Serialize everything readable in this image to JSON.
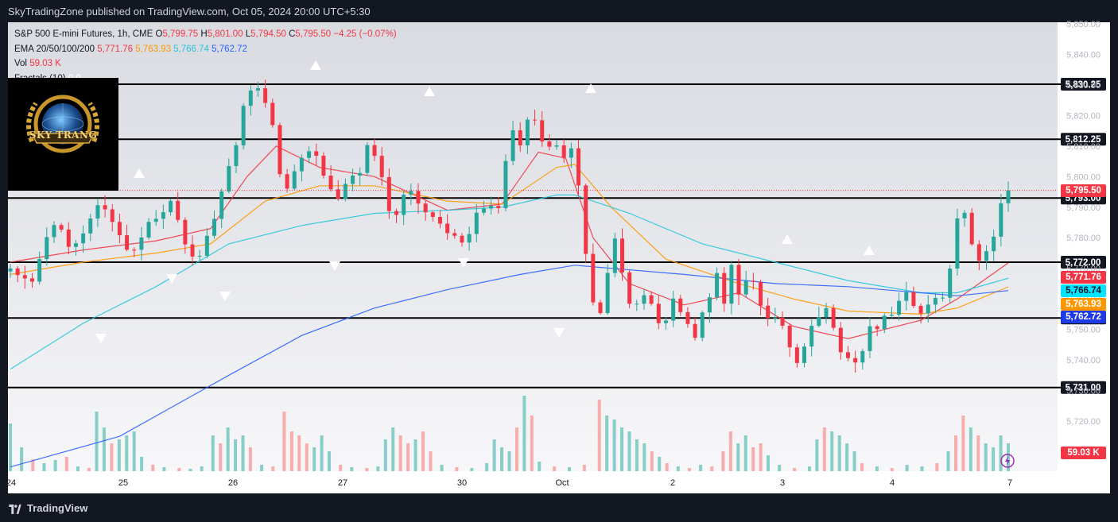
{
  "header": {
    "publisher_line": "SkyTradingZone published on TradingView.com, Oct 05, 2024 20:00 UTC+5:30"
  },
  "legend": {
    "symbol": "S&P 500 E-mini Futures, 1h, CME",
    "ohlc": {
      "o_label": "O",
      "o": "5,799.75",
      "h_label": "H",
      "h": "5,801.00",
      "l_label": "L",
      "l": "5,794.50",
      "c_label": "C",
      "c": "5,795.50",
      "change": "−4.25 (−0.07%)"
    },
    "ema_label": "EMA 20/50/100/200",
    "ema20": "5,771.76",
    "ema50": "5,763.93",
    "ema100": "5,766.74",
    "ema200": "5,762.72",
    "vol_label": "Vol",
    "vol_value": "59.03 K",
    "fractals_label": "Fractals (10)",
    "fractals_values": "0  0"
  },
  "brand": {
    "name": "SKY TRANG"
  },
  "price_tags": {
    "current": "5,795.50",
    "ema20": "5,771.76",
    "ema100": "5,766.74",
    "ema50": "5,763.93",
    "ema200": "5,762.72",
    "volume": "59.03 K"
  },
  "footer": {
    "brand": "TradingView"
  },
  "colors": {
    "bull": "#26a69a",
    "bear": "#f23645",
    "ema20": "#f23645",
    "ema50": "#ff9800",
    "ema100": "#26c6da",
    "ema200": "#2962ff"
  },
  "chart_data": {
    "type": "candlestick",
    "symbol": "S&P 500 E-mini Futures",
    "timeframe": "1h",
    "y_ticks": [
      "5,850.00",
      "5,840.00",
      "5,830.00",
      "5,820.00",
      "5,810.00",
      "5,800.00",
      "5,790.00",
      "5,780.00",
      "5,770.00",
      "5,760.00",
      "5,750.00",
      "5,740.00",
      "5,730.00",
      "5,720.00"
    ],
    "y_tick_values": [
      5850,
      5840,
      5830,
      5820,
      5810,
      5800,
      5790,
      5780,
      5770,
      5760,
      5750,
      5740,
      5730,
      5720
    ],
    "x_ticks": [
      "24",
      "25",
      "26",
      "27",
      "30",
      "Oct",
      "2",
      "3",
      "4",
      "7"
    ],
    "horizontal_levels": [
      {
        "value": 5830.25,
        "label": "5,830.25"
      },
      {
        "value": 5812.25,
        "label": "5,812.25"
      },
      {
        "value": 5793.0,
        "label": "5,793.00"
      },
      {
        "value": 5772.0,
        "label": "5,772.00"
      },
      {
        "value": 5753.75,
        "label": "5,753.75"
      },
      {
        "value": 5731.0,
        "label": "5,731.00"
      }
    ],
    "last_price": 5795.5,
    "key_points": [
      [
        0,
        5770
      ],
      [
        6,
        5767
      ],
      [
        12,
        5765
      ],
      [
        18,
        5776
      ],
      [
        22,
        5787
      ],
      [
        28,
        5783
      ],
      [
        34,
        5776
      ],
      [
        40,
        5782
      ],
      [
        46,
        5790
      ],
      [
        54,
        5791
      ],
      [
        60,
        5779
      ],
      [
        66,
        5775
      ],
      [
        72,
        5781
      ],
      [
        80,
        5786
      ],
      [
        88,
        5793
      ],
      [
        96,
        5778
      ],
      [
        102,
        5774
      ],
      [
        108,
        5780
      ],
      [
        116,
        5795
      ],
      [
        124,
        5812
      ],
      [
        130,
        5827
      ],
      [
        136,
        5829
      ],
      [
        142,
        5822
      ],
      [
        146,
        5810
      ],
      [
        150,
        5795
      ],
      [
        156,
        5802
      ],
      [
        162,
        5808
      ],
      [
        168,
        5807
      ],
      [
        174,
        5797
      ],
      [
        180,
        5793
      ],
      [
        186,
        5799
      ],
      [
        192,
        5803
      ],
      [
        198,
        5813
      ],
      [
        204,
        5798
      ],
      [
        210,
        5786
      ],
      [
        218,
        5795
      ],
      [
        226,
        5790
      ],
      [
        234,
        5786
      ],
      [
        242,
        5782
      ],
      [
        250,
        5776
      ],
      [
        256,
        5787
      ],
      [
        262,
        5793
      ],
      [
        268,
        5788
      ],
      [
        274,
        5815
      ],
      [
        280,
        5810
      ],
      [
        286,
        5821
      ],
      [
        292,
        5812
      ],
      [
        298,
        5809
      ],
      [
        304,
        5808
      ],
      [
        310,
        5808
      ],
      [
        318,
        5765
      ],
      [
        322,
        5752
      ],
      [
        328,
        5768
      ],
      [
        332,
        5780
      ],
      [
        336,
        5770
      ],
      [
        340,
        5757
      ],
      [
        346,
        5762
      ],
      [
        352,
        5758
      ],
      [
        358,
        5752
      ],
      [
        364,
        5760
      ],
      [
        370,
        5756
      ],
      [
        376,
        5748
      ],
      [
        382,
        5757
      ],
      [
        388,
        5768
      ],
      [
        392,
        5760
      ],
      [
        396,
        5770
      ],
      [
        400,
        5763
      ],
      [
        406,
        5768
      ],
      [
        412,
        5758
      ],
      [
        418,
        5752
      ],
      [
        424,
        5752
      ],
      [
        430,
        5738
      ],
      [
        436,
        5745
      ],
      [
        442,
        5755
      ],
      [
        448,
        5758
      ],
      [
        454,
        5746
      ],
      [
        460,
        5740
      ],
      [
        466,
        5740
      ],
      [
        472,
        5752
      ],
      [
        478,
        5752
      ],
      [
        484,
        5754
      ],
      [
        490,
        5762
      ],
      [
        496,
        5757
      ],
      [
        502,
        5755
      ],
      [
        508,
        5759
      ],
      [
        514,
        5762
      ],
      [
        520,
        5785
      ],
      [
        524,
        5790
      ],
      [
        528,
        5778
      ],
      [
        532,
        5773
      ],
      [
        536,
        5777
      ],
      [
        540,
        5781
      ],
      [
        544,
        5793
      ],
      [
        548,
        5795.5
      ]
    ],
    "ema20_points": [
      [
        0,
        5772
      ],
      [
        40,
        5776
      ],
      [
        80,
        5779
      ],
      [
        110,
        5783
      ],
      [
        130,
        5800
      ],
      [
        146,
        5810
      ],
      [
        170,
        5803
      ],
      [
        200,
        5800
      ],
      [
        240,
        5789
      ],
      [
        270,
        5791
      ],
      [
        290,
        5808
      ],
      [
        305,
        5806
      ],
      [
        320,
        5780
      ],
      [
        340,
        5765
      ],
      [
        370,
        5758
      ],
      [
        400,
        5762
      ],
      [
        430,
        5751
      ],
      [
        460,
        5747
      ],
      [
        500,
        5753
      ],
      [
        520,
        5760
      ],
      [
        548,
        5771.76
      ]
    ],
    "ema50_points": [
      [
        0,
        5768
      ],
      [
        40,
        5772
      ],
      [
        80,
        5775
      ],
      [
        110,
        5778
      ],
      [
        140,
        5792
      ],
      [
        170,
        5797
      ],
      [
        200,
        5797
      ],
      [
        240,
        5792
      ],
      [
        270,
        5791
      ],
      [
        300,
        5803
      ],
      [
        310,
        5804
      ],
      [
        330,
        5790
      ],
      [
        360,
        5773
      ],
      [
        400,
        5765
      ],
      [
        430,
        5760
      ],
      [
        460,
        5756
      ],
      [
        500,
        5755
      ],
      [
        520,
        5757
      ],
      [
        548,
        5763.93
      ]
    ],
    "ema100_points": [
      [
        0,
        5737
      ],
      [
        40,
        5752
      ],
      [
        80,
        5764
      ],
      [
        120,
        5778
      ],
      [
        160,
        5784
      ],
      [
        200,
        5788
      ],
      [
        240,
        5789
      ],
      [
        270,
        5790
      ],
      [
        300,
        5794
      ],
      [
        310,
        5794
      ],
      [
        340,
        5788
      ],
      [
        380,
        5778
      ],
      [
        420,
        5772
      ],
      [
        460,
        5766
      ],
      [
        500,
        5762
      ],
      [
        520,
        5762
      ],
      [
        548,
        5766.74
      ]
    ],
    "ema200_points": [
      [
        0,
        5705
      ],
      [
        60,
        5715
      ],
      [
        120,
        5735
      ],
      [
        160,
        5748
      ],
      [
        200,
        5757
      ],
      [
        240,
        5763
      ],
      [
        280,
        5768
      ],
      [
        310,
        5771
      ],
      [
        330,
        5770
      ],
      [
        370,
        5768
      ],
      [
        420,
        5765
      ],
      [
        460,
        5764
      ],
      [
        500,
        5762
      ],
      [
        520,
        5761
      ],
      [
        548,
        5762.72
      ]
    ],
    "fractal_up": [
      [
        37,
        5797
      ],
      [
        122,
        5839
      ],
      [
        178,
        5831
      ],
      [
        285,
        5832
      ],
      [
        380,
        5779
      ],
      [
        445,
        5776
      ]
    ],
    "fractal_down": [
      [
        45,
        5767
      ],
      [
        85,
        5759
      ],
      [
        108,
        5765
      ],
      [
        173,
        5773
      ],
      [
        238,
        5774
      ],
      [
        290,
        5754
      ]
    ],
    "volume_bars": [
      [
        0,
        60,
        "b"
      ],
      [
        6,
        30,
        "b"
      ],
      [
        12,
        15,
        "r"
      ],
      [
        18,
        10,
        "b"
      ],
      [
        24,
        14,
        "b"
      ],
      [
        30,
        18,
        "r"
      ],
      [
        36,
        6,
        "b"
      ],
      [
        42,
        4,
        "r"
      ],
      [
        46,
        75,
        "b"
      ],
      [
        50,
        55,
        "b"
      ],
      [
        54,
        35,
        "r"
      ],
      [
        58,
        40,
        "b"
      ],
      [
        62,
        45,
        "b"
      ],
      [
        66,
        50,
        "b"
      ],
      [
        70,
        18,
        "b"
      ],
      [
        76,
        8,
        "r"
      ],
      [
        82,
        5,
        "b"
      ],
      [
        90,
        4,
        "r"
      ],
      [
        96,
        3,
        "b"
      ],
      [
        102,
        6,
        "b"
      ],
      [
        108,
        45,
        "b"
      ],
      [
        112,
        35,
        "r"
      ],
      [
        116,
        55,
        "b"
      ],
      [
        120,
        40,
        "b"
      ],
      [
        124,
        45,
        "b"
      ],
      [
        128,
        30,
        "r"
      ],
      [
        134,
        8,
        "b"
      ],
      [
        140,
        6,
        "r"
      ],
      [
        146,
        75,
        "r"
      ],
      [
        150,
        50,
        "r"
      ],
      [
        154,
        45,
        "r"
      ],
      [
        158,
        35,
        "r"
      ],
      [
        162,
        30,
        "b"
      ],
      [
        166,
        45,
        "b"
      ],
      [
        170,
        25,
        "b"
      ],
      [
        176,
        8,
        "r"
      ],
      [
        182,
        5,
        "b"
      ],
      [
        190,
        4,
        "r"
      ],
      [
        196,
        6,
        "b"
      ],
      [
        200,
        40,
        "b"
      ],
      [
        204,
        55,
        "b"
      ],
      [
        208,
        45,
        "r"
      ],
      [
        212,
        35,
        "r"
      ],
      [
        216,
        40,
        "b"
      ],
      [
        220,
        50,
        "r"
      ],
      [
        224,
        25,
        "r"
      ],
      [
        230,
        8,
        "b"
      ],
      [
        238,
        5,
        "r"
      ],
      [
        246,
        4,
        "b"
      ],
      [
        254,
        10,
        "b"
      ],
      [
        258,
        40,
        "b"
      ],
      [
        262,
        30,
        "b"
      ],
      [
        266,
        25,
        "b"
      ],
      [
        270,
        55,
        "r"
      ],
      [
        274,
        95,
        "b"
      ],
      [
        278,
        70,
        "r"
      ],
      [
        282,
        12,
        "b"
      ],
      [
        290,
        6,
        "r"
      ],
      [
        298,
        5,
        "b"
      ],
      [
        306,
        8,
        "r"
      ],
      [
        314,
        90,
        "r"
      ],
      [
        318,
        70,
        "b"
      ],
      [
        322,
        65,
        "b"
      ],
      [
        326,
        55,
        "b"
      ],
      [
        330,
        50,
        "b"
      ],
      [
        334,
        40,
        "b"
      ],
      [
        338,
        35,
        "b"
      ],
      [
        342,
        25,
        "r"
      ],
      [
        346,
        18,
        "b"
      ],
      [
        350,
        10,
        "r"
      ],
      [
        356,
        6,
        "b"
      ],
      [
        362,
        4,
        "r"
      ],
      [
        368,
        8,
        "b"
      ],
      [
        374,
        6,
        "r"
      ],
      [
        380,
        25,
        "r"
      ],
      [
        384,
        50,
        "r"
      ],
      [
        388,
        35,
        "b"
      ],
      [
        392,
        45,
        "b"
      ],
      [
        396,
        30,
        "r"
      ],
      [
        400,
        35,
        "r"
      ],
      [
        404,
        20,
        "b"
      ],
      [
        410,
        8,
        "b"
      ],
      [
        418,
        4,
        "r"
      ],
      [
        426,
        6,
        "b"
      ],
      [
        430,
        40,
        "b"
      ],
      [
        434,
        55,
        "r"
      ],
      [
        438,
        50,
        "b"
      ],
      [
        442,
        45,
        "b"
      ],
      [
        446,
        35,
        "b"
      ],
      [
        450,
        25,
        "b"
      ],
      [
        454,
        10,
        "r"
      ],
      [
        462,
        6,
        "b"
      ],
      [
        470,
        4,
        "r"
      ],
      [
        478,
        8,
        "b"
      ],
      [
        486,
        6,
        "b"
      ],
      [
        494,
        10,
        "r"
      ],
      [
        500,
        25,
        "b"
      ],
      [
        504,
        45,
        "r"
      ],
      [
        508,
        70,
        "r"
      ],
      [
        512,
        55,
        "b"
      ],
      [
        516,
        45,
        "r"
      ],
      [
        520,
        35,
        "b"
      ],
      [
        524,
        30,
        "b"
      ],
      [
        528,
        45,
        "b"
      ],
      [
        532,
        35,
        "b"
      ]
    ]
  }
}
